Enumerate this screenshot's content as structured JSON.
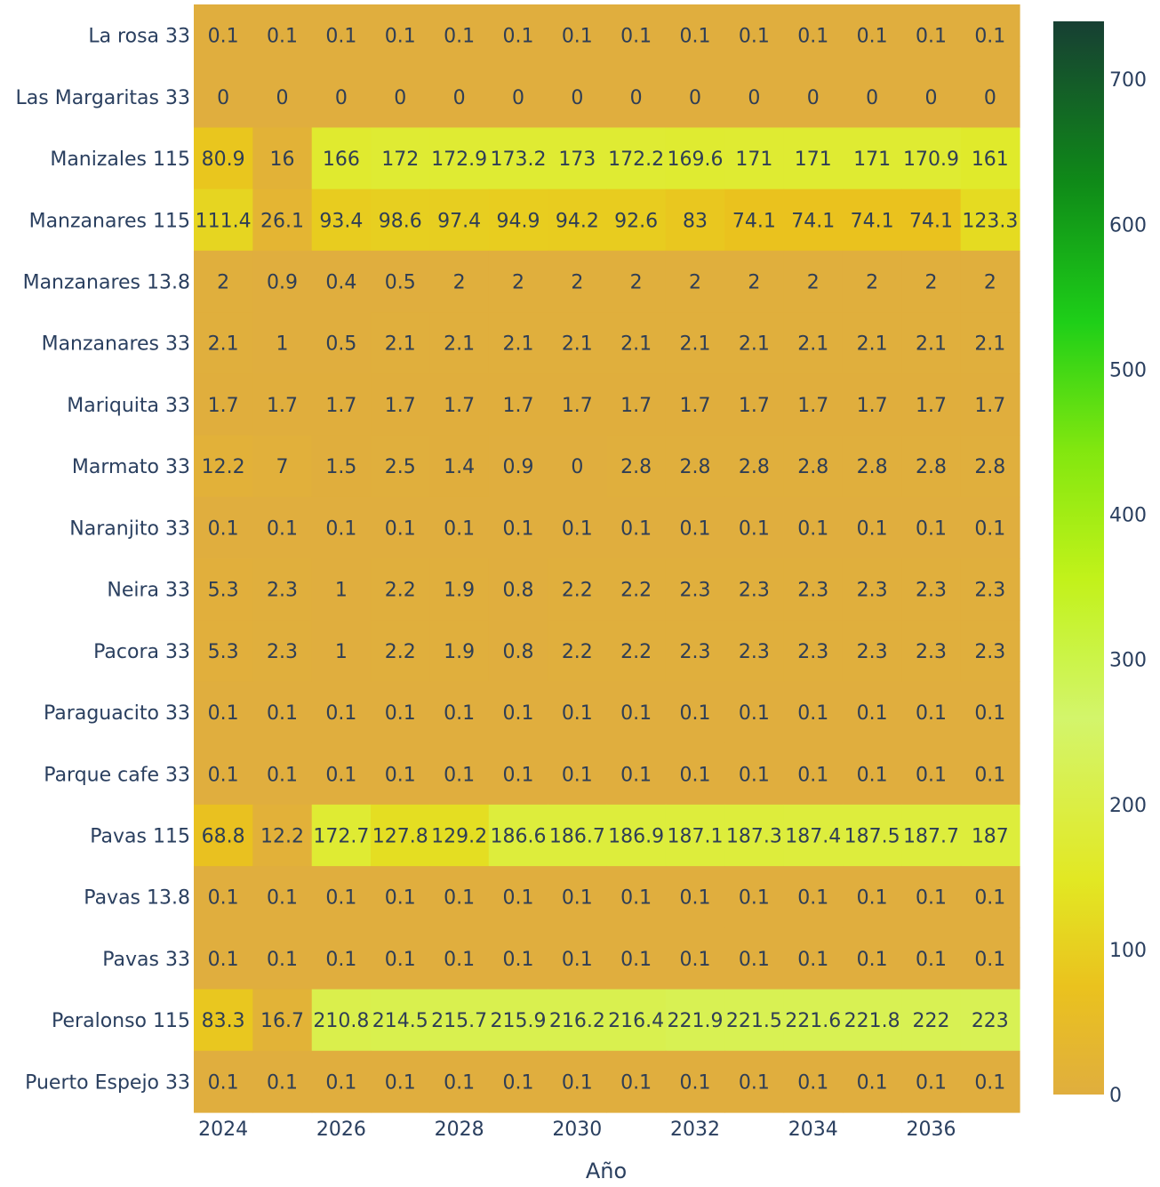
{
  "chart_data": {
    "type": "heatmap",
    "title": "",
    "xlabel": "Año",
    "ylabel": "",
    "x": [
      2024,
      2025,
      2026,
      2027,
      2028,
      2029,
      2030,
      2031,
      2032,
      2033,
      2034,
      2035,
      2036,
      2037
    ],
    "x_tick_labels": [
      "2024",
      "2026",
      "2028",
      "2030",
      "2032",
      "2034",
      "2036"
    ],
    "rows": [
      {
        "label": "La rosa 33",
        "values": [
          0.1,
          0.1,
          0.1,
          0.1,
          0.1,
          0.1,
          0.1,
          0.1,
          0.1,
          0.1,
          0.1,
          0.1,
          0.1,
          0.1
        ]
      },
      {
        "label": "Las Margaritas 33",
        "values": [
          0,
          0,
          0,
          0,
          0,
          0,
          0,
          0,
          0,
          0,
          0,
          0,
          0,
          0
        ]
      },
      {
        "label": "Manizales 115",
        "values": [
          80.9,
          16,
          166,
          172,
          172.9,
          173.2,
          173,
          172.2,
          169.6,
          171,
          171,
          171,
          170.9,
          161
        ]
      },
      {
        "label": "Manzanares 115",
        "values": [
          111.4,
          26.1,
          93.4,
          98.6,
          97.4,
          94.9,
          94.2,
          92.6,
          83,
          74.1,
          74.1,
          74.1,
          74.1,
          123.3
        ]
      },
      {
        "label": "Manzanares 13.8",
        "values": [
          2,
          0.9,
          0.4,
          0.5,
          2,
          2,
          2,
          2,
          2,
          2,
          2,
          2,
          2,
          2
        ]
      },
      {
        "label": "Manzanares 33",
        "values": [
          2.1,
          1,
          0.5,
          2.1,
          2.1,
          2.1,
          2.1,
          2.1,
          2.1,
          2.1,
          2.1,
          2.1,
          2.1,
          2.1
        ]
      },
      {
        "label": "Mariquita 33",
        "values": [
          1.7,
          1.7,
          1.7,
          1.7,
          1.7,
          1.7,
          1.7,
          1.7,
          1.7,
          1.7,
          1.7,
          1.7,
          1.7,
          1.7
        ]
      },
      {
        "label": "Marmato 33",
        "values": [
          12.2,
          7,
          1.5,
          2.5,
          1.4,
          0.9,
          0,
          2.8,
          2.8,
          2.8,
          2.8,
          2.8,
          2.8,
          2.8
        ]
      },
      {
        "label": "Naranjito 33",
        "values": [
          0.1,
          0.1,
          0.1,
          0.1,
          0.1,
          0.1,
          0.1,
          0.1,
          0.1,
          0.1,
          0.1,
          0.1,
          0.1,
          0.1
        ]
      },
      {
        "label": "Neira 33",
        "values": [
          5.3,
          2.3,
          1,
          2.2,
          1.9,
          0.8,
          2.2,
          2.2,
          2.3,
          2.3,
          2.3,
          2.3,
          2.3,
          2.3
        ]
      },
      {
        "label": "Pacora 33",
        "values": [
          5.3,
          2.3,
          1,
          2.2,
          1.9,
          0.8,
          2.2,
          2.2,
          2.3,
          2.3,
          2.3,
          2.3,
          2.3,
          2.3
        ]
      },
      {
        "label": "Paraguacito 33",
        "values": [
          0.1,
          0.1,
          0.1,
          0.1,
          0.1,
          0.1,
          0.1,
          0.1,
          0.1,
          0.1,
          0.1,
          0.1,
          0.1,
          0.1
        ]
      },
      {
        "label": "Parque cafe 33",
        "values": [
          0.1,
          0.1,
          0.1,
          0.1,
          0.1,
          0.1,
          0.1,
          0.1,
          0.1,
          0.1,
          0.1,
          0.1,
          0.1,
          0.1
        ]
      },
      {
        "label": "Pavas 115",
        "values": [
          68.8,
          12.2,
          172.7,
          127.8,
          129.2,
          186.6,
          186.7,
          186.9,
          187.1,
          187.3,
          187.4,
          187.5,
          187.7,
          187
        ]
      },
      {
        "label": "Pavas 13.8",
        "values": [
          0.1,
          0.1,
          0.1,
          0.1,
          0.1,
          0.1,
          0.1,
          0.1,
          0.1,
          0.1,
          0.1,
          0.1,
          0.1,
          0.1
        ]
      },
      {
        "label": "Pavas 33",
        "values": [
          0.1,
          0.1,
          0.1,
          0.1,
          0.1,
          0.1,
          0.1,
          0.1,
          0.1,
          0.1,
          0.1,
          0.1,
          0.1,
          0.1
        ]
      },
      {
        "label": "Peralonso 115",
        "values": [
          83.3,
          16.7,
          210.8,
          214.5,
          215.7,
          215.9,
          216.2,
          216.4,
          221.9,
          221.5,
          221.6,
          221.8,
          222,
          223
        ]
      },
      {
        "label": "Puerto Espejo 33",
        "values": [
          0.1,
          0.1,
          0.1,
          0.1,
          0.1,
          0.1,
          0.1,
          0.1,
          0.1,
          0.1,
          0.1,
          0.1,
          0.1,
          0.1
        ]
      }
    ],
    "colorbar": {
      "range": [
        0,
        740
      ],
      "ticks": [
        0,
        100,
        200,
        300,
        400,
        500,
        600,
        700
      ]
    },
    "colorscale": [
      [
        0,
        "#E0AE3E"
      ],
      [
        0.1,
        "#EAC21E"
      ],
      [
        0.2,
        "#E2E823"
      ],
      [
        0.35,
        "#D3F56B"
      ],
      [
        0.48,
        "#C2F21A"
      ],
      [
        0.6,
        "#82E70F"
      ],
      [
        0.72,
        "#1ECF18"
      ],
      [
        0.85,
        "#0F8A18"
      ],
      [
        1,
        "#173F33"
      ]
    ],
    "text_color": "#2F3E55",
    "axis_text_color": "#2A3F5F"
  }
}
